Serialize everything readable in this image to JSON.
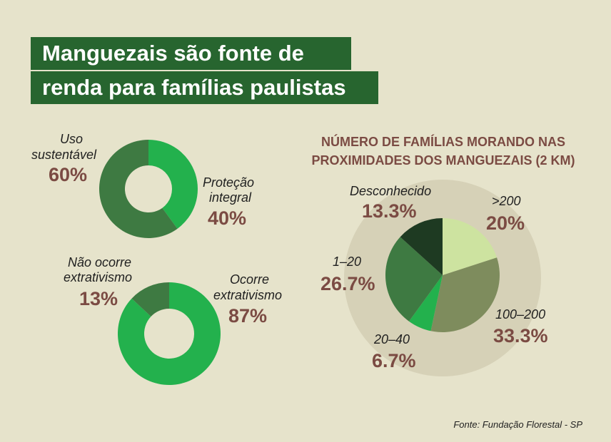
{
  "title": {
    "line1": "Manguezais são fonte de",
    "line2": "renda para famílias paulistas"
  },
  "colors": {
    "background": "#e6e3cb",
    "title_bg": "#27652f",
    "label_brown": "#7b4b43"
  },
  "chart_data": [
    {
      "type": "pie",
      "style": "donut",
      "categories": [
        "Proteção integral",
        "Uso sustentável"
      ],
      "values": [
        40,
        60
      ],
      "label_lines": [
        [
          "Proteção",
          "integral"
        ],
        [
          "Uso",
          "sustentável"
        ]
      ],
      "value_labels": [
        "40%",
        "60%"
      ],
      "colors": [
        "#23b14d",
        "#3e7a42"
      ]
    },
    {
      "type": "pie",
      "style": "donut",
      "categories": [
        "Ocorre extrativismo",
        "Não ocorre extrativismo"
      ],
      "values": [
        87,
        13
      ],
      "label_lines": [
        [
          "Ocorre",
          "extrativismo"
        ],
        [
          "Não ocorre",
          "extrativismo"
        ]
      ],
      "value_labels": [
        "87%",
        "13%"
      ],
      "colors": [
        "#23b14d",
        "#3e7a42"
      ]
    },
    {
      "type": "pie",
      "title_lines": [
        "NÚMERO DE FAMÍLIAS MORANDO NAS",
        "PROXIMIDADES DOS MANGUEZAIS (2 KM)"
      ],
      "categories": [
        ">200",
        "100–200",
        "20–40",
        "1–20",
        "Desconhecido"
      ],
      "values": [
        20,
        33.3,
        6.7,
        26.7,
        13.3
      ],
      "value_labels": [
        "20%",
        "33.3%",
        "6.7%",
        "26.7%",
        "13.3%"
      ],
      "colors": [
        "#cde3a0",
        "#7e8c5d",
        "#23b14d",
        "#3e7a42",
        "#1e3a22"
      ]
    }
  ],
  "source": "Fonte: Fundação Florestal - SP"
}
